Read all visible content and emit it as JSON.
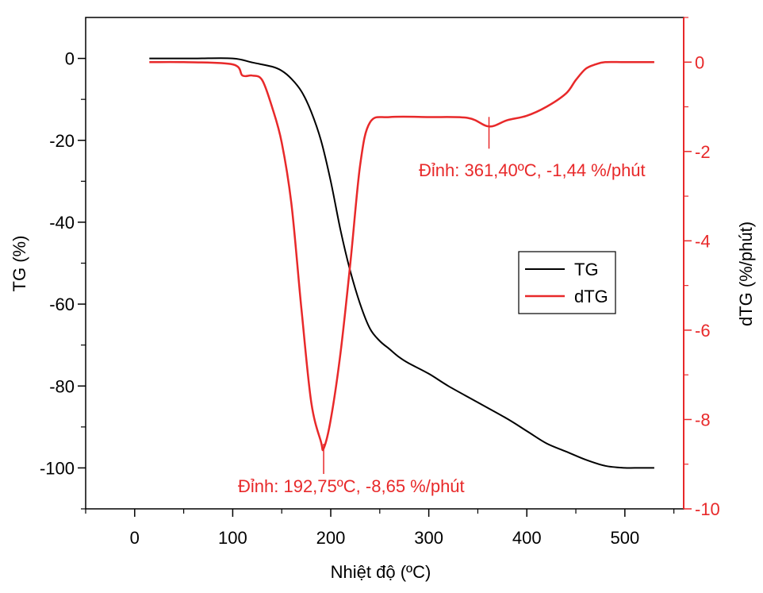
{
  "chart_data": {
    "type": "line",
    "xlabel": "Nhiệt độ (ºC)",
    "ylabel": "TG (%)",
    "y2label": "dTG (%/phút)",
    "xlim": [
      -50,
      560
    ],
    "ylim": [
      -110,
      10
    ],
    "y2lim": [
      -10,
      1
    ],
    "x_ticks": [
      0,
      100,
      200,
      300,
      400,
      500
    ],
    "y_ticks": [
      0,
      -20,
      -40,
      -60,
      -80,
      -100
    ],
    "y2_ticks": [
      0,
      -2,
      -4,
      -6,
      -8,
      -10
    ],
    "grid": false,
    "legend_position": "center-right",
    "colors": {
      "TG": "#000000",
      "dTG": "#e8292a"
    },
    "series": [
      {
        "name": "TG",
        "axis": "left",
        "x": [
          15,
          60,
          100,
          120,
          140,
          150,
          160,
          170,
          180,
          190,
          200,
          210,
          220,
          230,
          240,
          250,
          260,
          270,
          280,
          300,
          320,
          350,
          380,
          400,
          420,
          440,
          460,
          480,
          500,
          510,
          530
        ],
        "y": [
          0,
          0,
          0,
          -1,
          -2,
          -3,
          -5,
          -8,
          -13,
          -20,
          -30,
          -42,
          -52,
          -60,
          -66,
          -69,
          -71,
          -73,
          -74.5,
          -77,
          -80,
          -84,
          -88,
          -91,
          -94,
          -96,
          -98,
          -99.5,
          -100,
          -100,
          -100
        ]
      },
      {
        "name": "dTG",
        "axis": "right",
        "x": [
          15,
          50,
          100,
          110,
          120,
          130,
          140,
          150,
          160,
          170,
          180,
          190,
          192.75,
          200,
          210,
          220,
          230,
          240,
          260,
          300,
          340,
          361.4,
          380,
          400,
          420,
          440,
          450,
          460,
          470,
          480,
          500,
          530
        ],
        "y": [
          0,
          0,
          -0.05,
          -0.3,
          -0.3,
          -0.4,
          -1.0,
          -1.8,
          -3.2,
          -5.5,
          -7.6,
          -8.5,
          -8.65,
          -8.0,
          -6.5,
          -4.5,
          -2.3,
          -1.35,
          -1.23,
          -1.23,
          -1.25,
          -1.44,
          -1.3,
          -1.2,
          -1.0,
          -0.7,
          -0.4,
          -0.15,
          -0.05,
          0,
          0,
          0
        ]
      }
    ],
    "legend": [
      "TG",
      "dTG"
    ],
    "annotations": [
      {
        "text": "Đỉnh: 361,40ºC, -1,44 %/phút",
        "x": 361.4,
        "y": -1.44
      },
      {
        "text": "Đỉnh: 192,75ºC, -8,65 %/phút",
        "x": 192.75,
        "y": -8.65
      }
    ]
  }
}
